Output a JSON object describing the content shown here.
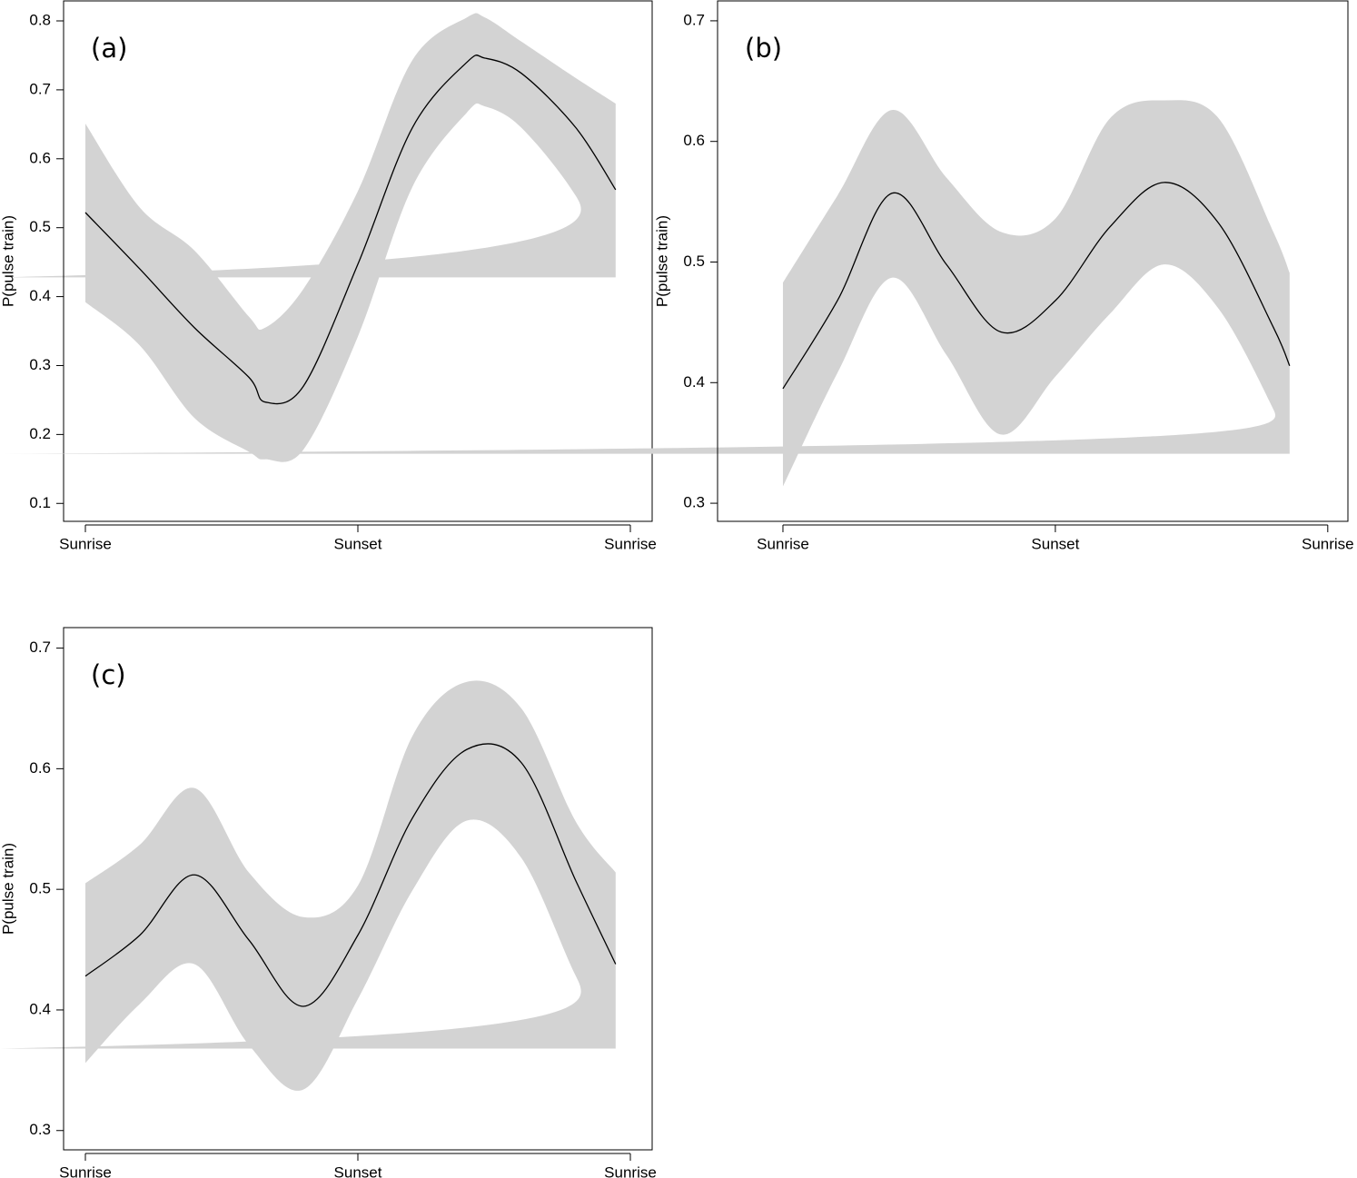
{
  "chart_data": [
    {
      "type": "line",
      "label": "(a)",
      "ylabel": "P(pulse train)",
      "x": [
        0,
        0.1,
        0.2,
        0.3,
        0.33,
        0.4,
        0.5,
        0.6,
        0.7,
        0.733,
        0.8,
        0.9,
        0.973
      ],
      "series": [
        {
          "color": "#000000",
          "values": [
            0.522,
            0.44,
            0.355,
            0.283,
            0.247,
            0.27,
            0.447,
            0.645,
            0.74,
            0.746,
            0.724,
            0.645,
            0.555
          ]
        }
      ],
      "band": {
        "color": "#d3d3d3",
        "lower": [
          0.392,
          0.329,
          0.224,
          0.175,
          0.164,
          0.178,
          0.342,
          0.559,
          0.667,
          0.676,
          0.645,
          0.546,
          0.428
        ],
        "upper": [
          0.651,
          0.529,
          0.467,
          0.371,
          0.355,
          0.411,
          0.553,
          0.743,
          0.805,
          0.805,
          0.77,
          0.717,
          0.68
        ]
      },
      "xlim": [
        -0.04,
        1.04
      ],
      "xticks": [
        {
          "value": 0,
          "label": "Sunrise"
        },
        {
          "value": 0.5,
          "label": "Sunset"
        },
        {
          "value": 1,
          "label": "Sunrise"
        }
      ],
      "ylim": [
        0.074,
        0.829
      ],
      "yticks": [
        0.1,
        0.2,
        0.3,
        0.4,
        0.5,
        0.6,
        0.7,
        0.8
      ]
    },
    {
      "type": "line",
      "label": "(b)",
      "ylabel": "P(pulse train)",
      "x": [
        0,
        0.1,
        0.2,
        0.3,
        0.4,
        0.5,
        0.6,
        0.7,
        0.8,
        0.9,
        0.93
      ],
      "series": [
        {
          "color": "#000000",
          "values": [
            0.395,
            0.468,
            0.557,
            0.498,
            0.442,
            0.468,
            0.529,
            0.566,
            0.532,
            0.446,
            0.414
          ]
        }
      ],
      "band": {
        "color": "#d3d3d3",
        "lower": [
          0.314,
          0.408,
          0.487,
          0.423,
          0.357,
          0.405,
          0.457,
          0.498,
          0.461,
          0.378,
          0.341
        ],
        "upper": [
          0.483,
          0.555,
          0.626,
          0.57,
          0.525,
          0.536,
          0.619,
          0.634,
          0.619,
          0.525,
          0.491
        ]
      },
      "xlim": [
        -0.12,
        1.037
      ],
      "xticks": [
        {
          "value": 0,
          "label": "Sunrise"
        },
        {
          "value": 0.5,
          "label": "Sunset"
        },
        {
          "value": 1,
          "label": "Sunrise"
        }
      ],
      "ylim": [
        0.285,
        0.7165
      ],
      "yticks": [
        0.3,
        0.4,
        0.5,
        0.6,
        0.7
      ]
    },
    {
      "type": "line",
      "label": "(c)",
      "ylabel": "P(pulse train)",
      "x": [
        0,
        0.1,
        0.2,
        0.3,
        0.4,
        0.5,
        0.6,
        0.7,
        0.8,
        0.9,
        0.973
      ],
      "series": [
        {
          "color": "#000000",
          "values": [
            0.428,
            0.462,
            0.512,
            0.458,
            0.403,
            0.462,
            0.559,
            0.616,
            0.605,
            0.507,
            0.438
          ]
        }
      ],
      "band": {
        "color": "#d3d3d3",
        "lower": [
          0.356,
          0.405,
          0.438,
          0.371,
          0.334,
          0.409,
          0.499,
          0.557,
          0.526,
          0.428,
          0.368
        ],
        "upper": [
          0.505,
          0.537,
          0.584,
          0.514,
          0.477,
          0.503,
          0.627,
          0.672,
          0.65,
          0.556,
          0.514
        ]
      },
      "xlim": [
        -0.04,
        1.04
      ],
      "xticks": [
        {
          "value": 0,
          "label": "Sunrise"
        },
        {
          "value": 0.5,
          "label": "Sunset"
        },
        {
          "value": 1,
          "label": "Sunrise"
        }
      ],
      "ylim": [
        0.284,
        0.717
      ],
      "yticks": [
        0.3,
        0.4,
        0.5,
        0.6,
        0.7
      ]
    }
  ]
}
